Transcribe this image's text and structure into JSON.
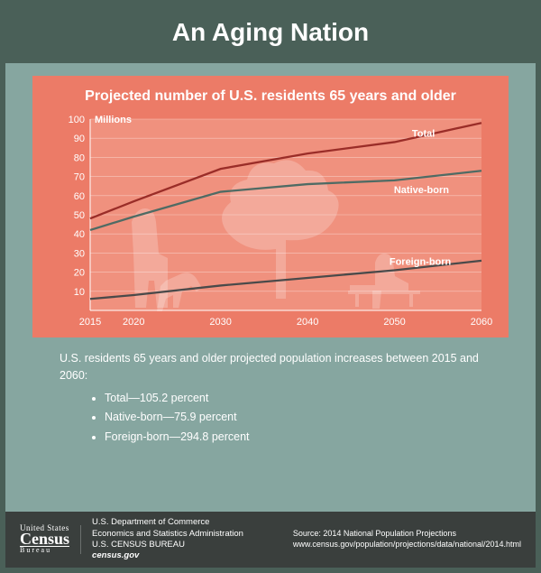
{
  "title": "An Aging Nation",
  "chart": {
    "type": "line",
    "title": "Projected number of U.S. residents 65 years and older",
    "y_unit_label": "Millions",
    "background_color": "#ec7b67",
    "plot_background_color": "#f0917e",
    "grid_color": "#ffffff",
    "x_ticks": [
      2015,
      2020,
      2030,
      2040,
      2050,
      2060
    ],
    "xlim": [
      2015,
      2060
    ],
    "y_ticks": [
      10,
      20,
      30,
      40,
      50,
      60,
      70,
      80,
      90,
      100
    ],
    "ylim": [
      0,
      100
    ],
    "axis_fontsize": 11,
    "line_width": 2.3,
    "series": [
      {
        "name": "Total",
        "label": "Total",
        "color": "#9a2d28",
        "x": [
          2015,
          2020,
          2030,
          2040,
          2050,
          2060
        ],
        "y": [
          48,
          57,
          74,
          82,
          88,
          98
        ]
      },
      {
        "name": "Native-born",
        "label": "Native-born",
        "color": "#4f6b64",
        "x": [
          2015,
          2020,
          2030,
          2040,
          2050,
          2060
        ],
        "y": [
          42,
          49,
          62,
          66,
          68,
          73
        ]
      },
      {
        "name": "Foreign-born",
        "label": "Foreign-born",
        "color": "#4a4a4a",
        "x": [
          2015,
          2020,
          2030,
          2040,
          2050,
          2060
        ],
        "y": [
          6,
          8,
          13,
          17,
          21,
          26
        ]
      }
    ]
  },
  "summary": {
    "lead": "U.S. residents 65 years and older projected population increases between 2015 and 2060:",
    "bullets": [
      "Total—105.2 percent",
      "Native-born—75.9 percent",
      "Foreign-born—294.8 percent"
    ]
  },
  "footer": {
    "logo_top": "United States",
    "logo_main": "Census",
    "logo_sub": "Bureau",
    "dept1": "U.S. Department of Commerce",
    "dept2": "Economics and Statistics Administration",
    "dept3": "U.S. CENSUS BUREAU",
    "dept4": "census.gov",
    "source1": "Source: 2014 National Population Projections",
    "source2": "www.census.gov/population/projections/data/national/2014.html"
  }
}
